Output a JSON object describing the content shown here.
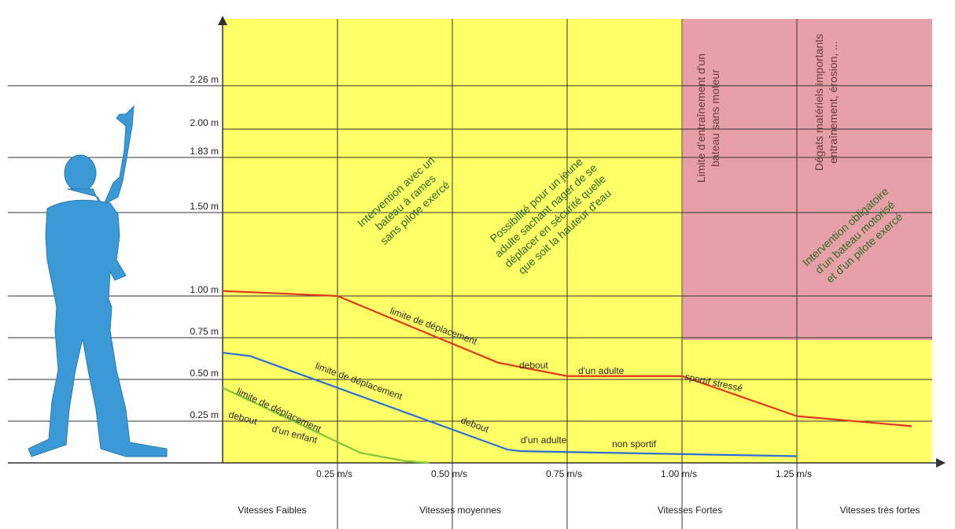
{
  "chart_data": {
    "type": "line",
    "y_ticks": [
      "2.26 m",
      "2.00 m",
      "1.83 m",
      "1.50 m",
      "1.00 m",
      "0.75 m",
      "0.50 m",
      "0.25 m"
    ],
    "x_ticks": [
      "0.25 m/s",
      "0.50 m/s",
      "0.75 m/s",
      "1.00 m/s",
      "1.25 m/s"
    ],
    "speed_categories": [
      "Vitesses Faibles",
      "Vitesses moyennes",
      "Vitesses Fortes",
      "Vitesses très fortes"
    ],
    "colors": {
      "yellow_zone": "#ffff66",
      "red_zone": "#e8a0a8",
      "adult_sport_curve": "#e03a1a",
      "adult_nonsport_curve": "#2e6fd6",
      "child_curve": "#7ec83a",
      "human_figure": "#3b9ad6"
    },
    "series": [
      {
        "name": "adulte sportif",
        "color": "#e03a1a",
        "x": [
          0.0,
          0.25,
          0.6,
          0.75,
          1.0,
          1.25,
          1.5
        ],
        "y": [
          1.03,
          1.0,
          0.6,
          0.52,
          0.52,
          0.28,
          0.22
        ]
      },
      {
        "name": "adulte non sportif",
        "color": "#2e6fd6",
        "x": [
          0.0,
          0.06,
          0.62,
          0.65,
          1.25
        ],
        "y": [
          0.66,
          0.64,
          0.08,
          0.07,
          0.04
        ]
      },
      {
        "name": "enfant",
        "color": "#7ec83a",
        "x": [
          0.0,
          0.1,
          0.3,
          0.4,
          0.45
        ],
        "y": [
          0.45,
          0.32,
          0.06,
          0.01,
          0.0
        ]
      }
    ],
    "curve_labels": {
      "red": [
        "limite de déplacement",
        "debout",
        "d'un adulte",
        "sportif stressé"
      ],
      "blue": [
        "limite de déplacement",
        "debout",
        "d'un adulte",
        "non sportif"
      ],
      "green": [
        "limite de déplacement",
        "debout",
        "d'un enfant"
      ]
    },
    "annotations": {
      "bateau_rames": [
        "Intervention avec un",
        "bateau à rames",
        "sans pilote exercé"
      ],
      "jeune_adulte": [
        "Possibilité pour un jeune",
        "adulte sachant nager de se",
        "déplacer en sécurité quelle",
        "que soit la hauteur d'eau"
      ],
      "limite_entrainement": [
        "Limite d'entraînement d'un",
        "bateau sans moteur"
      ],
      "degats": [
        "Dégats matériels importants",
        "entraînement, érosion, ..."
      ],
      "intervention_obligatoire": [
        "Intervention obligatoire",
        "d'un bateau motorisé",
        "et d'un pilote exercé"
      ]
    }
  }
}
